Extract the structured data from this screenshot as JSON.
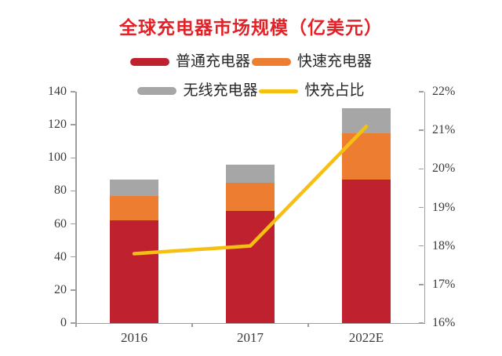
{
  "title": {
    "text": "全球充电器市场规模（亿美元）",
    "color": "#e32228"
  },
  "legend": {
    "items": [
      {
        "label": "普通充电器",
        "color": "#c0212f",
        "type": "bar"
      },
      {
        "label": "快速充电器",
        "color": "#ed7d31",
        "type": "bar"
      },
      {
        "label": "无线充电器",
        "color": "#a6a6a6",
        "type": "bar"
      },
      {
        "label": "快充占比",
        "color": "#f5c011",
        "type": "line"
      }
    ]
  },
  "chart_data": {
    "type": "bar",
    "subtype": "stacked-bar-with-line",
    "title": "全球充电器市场规模（亿美元）",
    "categories": [
      "2016",
      "2017",
      "2022E"
    ],
    "series": [
      {
        "id": "normal-charger",
        "name": "普通充电器",
        "type": "bar",
        "color": "#c0212f",
        "values": [
          62,
          68,
          87
        ]
      },
      {
        "id": "fast-charger",
        "name": "快速充电器",
        "type": "bar",
        "color": "#ed7d31",
        "values": [
          15,
          17,
          28
        ]
      },
      {
        "id": "wireless-charger",
        "name": "无线充电器",
        "type": "bar",
        "color": "#a6a6a6",
        "values": [
          10,
          11,
          15
        ]
      },
      {
        "id": "fast-charge-ratio",
        "name": "快充占比",
        "type": "line",
        "axis": "right",
        "unit": "%",
        "color": "#f5c011",
        "values": [
          17.8,
          18.0,
          21.1
        ]
      }
    ],
    "stack_totals": [
      87,
      96,
      130
    ],
    "left_axis": {
      "min": 0,
      "max": 140,
      "step": 20,
      "ticks": [
        "0",
        "20",
        "40",
        "60",
        "80",
        "100",
        "120",
        "140"
      ]
    },
    "right_axis": {
      "min": 16,
      "max": 22,
      "step": 1,
      "ticks": [
        "16%",
        "17%",
        "18%",
        "19%",
        "20%",
        "21%",
        "22%"
      ]
    },
    "grid": false,
    "legend_position": "top"
  }
}
